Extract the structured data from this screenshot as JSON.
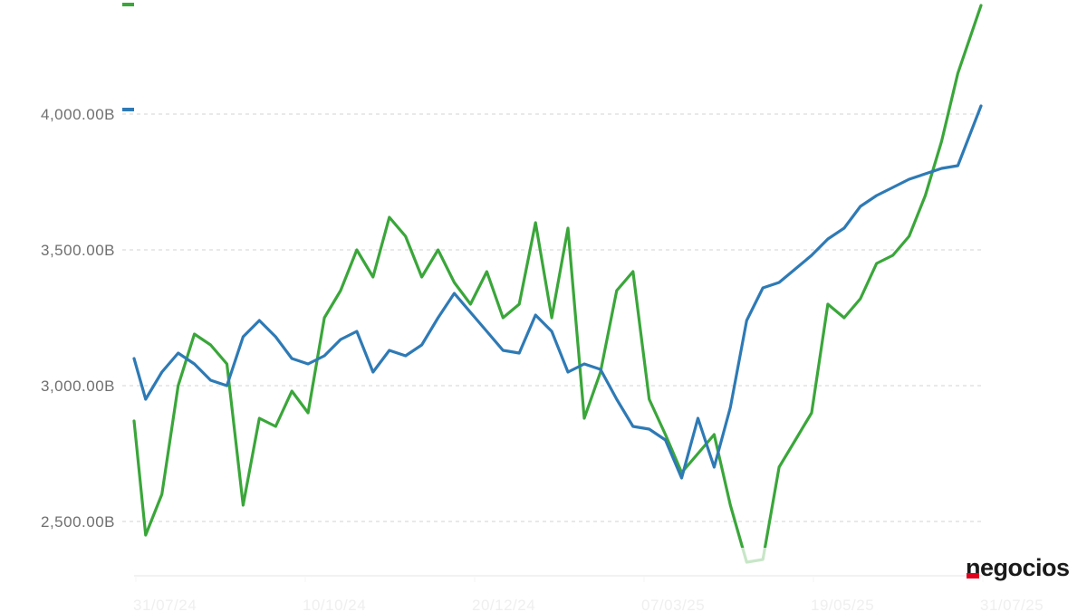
{
  "brand": {
    "logo_text": "negocios"
  },
  "colors": {
    "green_series": "#3aa63a",
    "blue_series": "#2e7ab5",
    "grid": "#dcdcdc"
  },
  "chart_data": {
    "type": "line",
    "title": "",
    "xlabel": "",
    "ylabel": "",
    "ylim": [
      2300,
      4400
    ],
    "grid": "horizontal dashed",
    "legend": "none",
    "y_ticks": [
      {
        "value": 2500,
        "label": "2,500.00B"
      },
      {
        "value": 3000,
        "label": "3,000.00B"
      },
      {
        "value": 3500,
        "label": "3,500.00B"
      },
      {
        "value": 4000,
        "label": "4,000.00B"
      }
    ],
    "x_ticks": [
      "31/07/24",
      "10/10/24",
      "20/12/24",
      "07/03/25",
      "19/05/25",
      "31/07/25"
    ],
    "series": [
      {
        "color": "#3aa63a",
        "x": [
          "2024-07-31",
          "2024-08-05",
          "2024-08-12",
          "2024-08-19",
          "2024-08-26",
          "2024-09-02",
          "2024-09-09",
          "2024-09-16",
          "2024-09-23",
          "2024-09-30",
          "2024-10-07",
          "2024-10-14",
          "2024-10-21",
          "2024-10-28",
          "2024-11-04",
          "2024-11-11",
          "2024-11-18",
          "2024-11-25",
          "2024-12-02",
          "2024-12-09",
          "2024-12-16",
          "2024-12-23",
          "2024-12-30",
          "2025-01-06",
          "2025-01-13",
          "2025-01-20",
          "2025-01-27",
          "2025-02-03",
          "2025-02-10",
          "2025-02-17",
          "2025-02-24",
          "2025-03-03",
          "2025-03-10",
          "2025-03-17",
          "2025-03-24",
          "2025-03-31",
          "2025-04-07",
          "2025-04-14",
          "2025-04-21",
          "2025-04-28",
          "2025-05-05",
          "2025-05-12",
          "2025-05-19",
          "2025-05-26",
          "2025-06-02",
          "2025-06-09",
          "2025-06-16",
          "2025-06-23",
          "2025-06-30",
          "2025-07-07",
          "2025-07-14",
          "2025-07-21",
          "2025-07-31"
        ],
        "values": [
          2870,
          2450,
          2600,
          3000,
          3190,
          3150,
          3080,
          2560,
          2880,
          2850,
          2980,
          2900,
          3250,
          3350,
          3500,
          3400,
          3620,
          3550,
          3400,
          3500,
          3380,
          3300,
          3420,
          3250,
          3300,
          3600,
          3250,
          3580,
          2880,
          3050,
          3350,
          3420,
          2950,
          2820,
          2680,
          2750,
          2820,
          2560,
          2350,
          2360,
          2700,
          2800,
          2900,
          3300,
          3250,
          3320,
          3450,
          3480,
          3550,
          3700,
          3900,
          4150,
          4400
        ]
      },
      {
        "color": "#2e7ab5",
        "x": [
          "2024-07-31",
          "2024-08-05",
          "2024-08-12",
          "2024-08-19",
          "2024-08-26",
          "2024-09-02",
          "2024-09-09",
          "2024-09-16",
          "2024-09-23",
          "2024-09-30",
          "2024-10-07",
          "2024-10-14",
          "2024-10-21",
          "2024-10-28",
          "2024-11-04",
          "2024-11-11",
          "2024-11-18",
          "2024-11-25",
          "2024-12-02",
          "2024-12-09",
          "2024-12-16",
          "2024-12-23",
          "2024-12-30",
          "2025-01-06",
          "2025-01-13",
          "2025-01-20",
          "2025-01-27",
          "2025-02-03",
          "2025-02-10",
          "2025-02-17",
          "2025-02-24",
          "2025-03-03",
          "2025-03-10",
          "2025-03-17",
          "2025-03-24",
          "2025-03-31",
          "2025-04-07",
          "2025-04-14",
          "2025-04-21",
          "2025-04-28",
          "2025-05-05",
          "2025-05-12",
          "2025-05-19",
          "2025-05-26",
          "2025-06-02",
          "2025-06-09",
          "2025-06-16",
          "2025-06-23",
          "2025-06-30",
          "2025-07-07",
          "2025-07-14",
          "2025-07-21",
          "2025-07-31"
        ],
        "values": [
          3100,
          2950,
          3050,
          3120,
          3080,
          3020,
          3000,
          3180,
          3240,
          3180,
          3100,
          3080,
          3110,
          3170,
          3200,
          3050,
          3130,
          3110,
          3150,
          3250,
          3340,
          3270,
          3200,
          3130,
          3120,
          3260,
          3200,
          3050,
          3080,
          3060,
          2950,
          2850,
          2840,
          2800,
          2660,
          2880,
          2700,
          2920,
          3240,
          3360,
          3380,
          3430,
          3480,
          3540,
          3580,
          3660,
          3700,
          3730,
          3760,
          3780,
          3800,
          3810,
          4030
        ]
      }
    ]
  }
}
